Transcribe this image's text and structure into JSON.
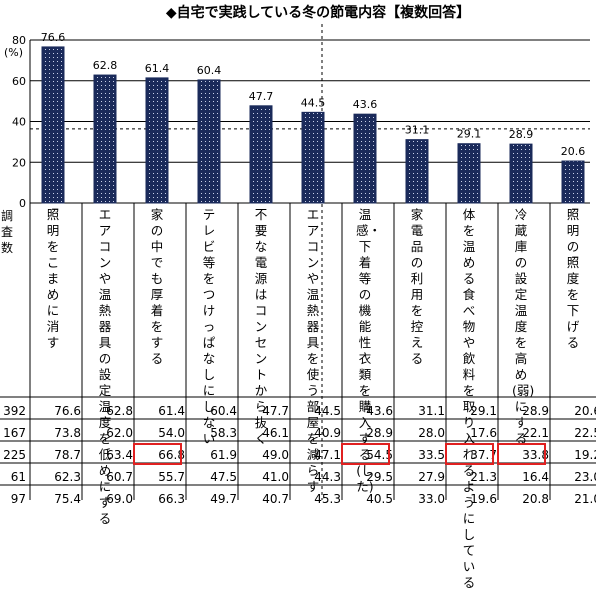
{
  "chart_data": {
    "type": "bar",
    "title": "◆自宅で実践している冬の節電内容【複数回答】",
    "ylabel": "(%)",
    "ylim": [
      0,
      80
    ],
    "yticks": [
      0,
      20,
      40,
      60,
      80
    ],
    "grid": true,
    "categories": [
      "照明をこまめに消す",
      "エアコンや温熱器具の設定温度を低めにする",
      "家の中でも厚着をする",
      "テレビ等をつけっぱなしにしない",
      "不要な電源はコンセントから抜く",
      "エアコンや温熱器具を使う部屋を減らす",
      "温感・下着等の機能性衣類を購入する(した)",
      "家電品の利用を控える",
      "体を温める食べ物や飲料を取り入れるようにしている",
      "冷蔵庫の設定温度を高め(弱)にする",
      "照明の照度を下げる"
    ],
    "values": [
      76.6,
      62.8,
      61.4,
      60.4,
      47.7,
      44.5,
      43.6,
      31.1,
      29.1,
      28.9,
      20.6
    ],
    "bar_color": "#1a2a5a"
  },
  "table": {
    "respondent_header": "調査数",
    "rows": [
      {
        "n": "392",
        "cells": [
          "76.6",
          "62.8",
          "61.4",
          "60.4",
          "47.7",
          "44.5",
          "43.6",
          "31.1",
          "29.1",
          "28.9",
          "20.6"
        ],
        "highlight": []
      },
      {
        "n": "167",
        "cells": [
          "73.8",
          "62.0",
          "54.0",
          "58.3",
          "46.1",
          "40.9",
          "28.9",
          "28.0",
          "17.6",
          "22.1",
          "22.5"
        ],
        "highlight": []
      },
      {
        "n": "225",
        "cells": [
          "78.7",
          "63.4",
          "66.8",
          "61.9",
          "49.0",
          "47.1",
          "54.5",
          "33.5",
          "37.7",
          "33.8",
          "19.2"
        ],
        "highlight": [
          2,
          6,
          8,
          9
        ]
      },
      {
        "n": "61",
        "cells": [
          "62.3",
          "60.7",
          "55.7",
          "47.5",
          "41.0",
          "44.3",
          "29.5",
          "27.9",
          "21.3",
          "16.4",
          "23.0"
        ],
        "highlight": []
      },
      {
        "n": "97",
        "cells": [
          "75.4",
          "69.0",
          "66.3",
          "49.7",
          "40.7",
          "45.3",
          "40.5",
          "33.0",
          "19.6",
          "20.8",
          "21.0"
        ],
        "highlight": []
      }
    ],
    "highlight_color": "#e02020"
  }
}
